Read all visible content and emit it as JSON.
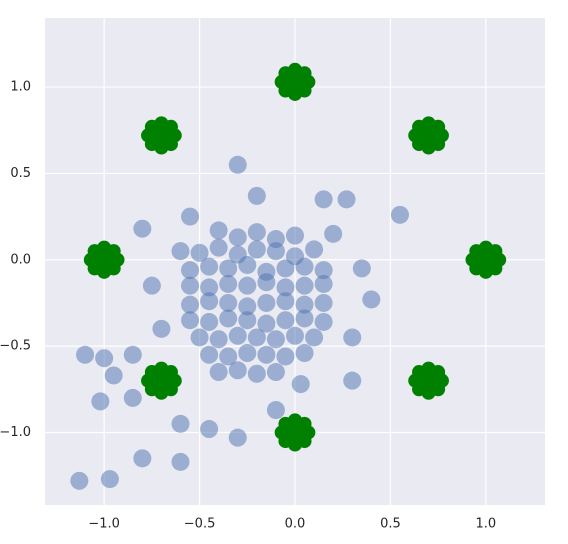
{
  "chart_data": {
    "type": "scatter",
    "xlim": [
      -1.31,
      1.31
    ],
    "ylim": [
      -1.42,
      1.4
    ],
    "xticks": [
      {
        "value": -1,
        "label": "−1.0"
      },
      {
        "value": -0.5,
        "label": "−0.5"
      },
      {
        "value": 0,
        "label": "0.0"
      },
      {
        "value": 0.5,
        "label": "0.5"
      },
      {
        "value": 1,
        "label": "1.0"
      }
    ],
    "yticks": [
      {
        "value": -1,
        "label": "−1.0"
      },
      {
        "value": -0.5,
        "label": "−0.5"
      },
      {
        "value": 0,
        "label": "0.0"
      },
      {
        "value": 0.5,
        "label": "0.5"
      },
      {
        "value": 1,
        "label": "1.0"
      }
    ],
    "grid": true,
    "background": "#eaeaf2",
    "series": [
      {
        "color": "#4c72b0",
        "opacity": 0.5,
        "x": [
          -0.4,
          -0.3,
          -0.2,
          -0.1,
          0.0,
          -0.5,
          -0.4,
          -0.3,
          -0.2,
          -0.1,
          0.0,
          0.1,
          -0.55,
          -0.45,
          -0.35,
          -0.25,
          -0.15,
          -0.05,
          0.05,
          0.15,
          -0.55,
          -0.45,
          -0.35,
          -0.25,
          -0.15,
          -0.05,
          0.05,
          0.15,
          -0.55,
          -0.45,
          -0.35,
          -0.25,
          -0.15,
          -0.05,
          0.05,
          0.15,
          -0.55,
          -0.45,
          -0.35,
          -0.25,
          -0.15,
          -0.05,
          0.05,
          0.15,
          -0.5,
          -0.4,
          -0.3,
          -0.2,
          -0.1,
          0.0,
          0.1,
          -0.45,
          -0.35,
          -0.25,
          -0.15,
          -0.05,
          0.05,
          -0.4,
          -0.3,
          -0.2,
          -0.1,
          -1.1,
          -1.0,
          -0.95,
          -1.02,
          -0.85,
          -1.13,
          -0.97,
          -0.8,
          -0.6,
          -0.3,
          -0.2,
          0.15,
          0.27,
          0.55,
          0.4,
          0.35,
          0.3,
          0.3,
          0.03,
          -0.1,
          -0.45,
          -0.3,
          -0.6,
          -0.75,
          -0.8,
          -0.6,
          -0.55,
          -0.7,
          -0.85,
          0.2
        ],
        "y": [
          0.17,
          0.13,
          0.16,
          0.12,
          0.14,
          0.04,
          0.07,
          0.03,
          0.06,
          0.05,
          0.02,
          0.06,
          -0.06,
          -0.04,
          -0.05,
          -0.03,
          -0.07,
          -0.05,
          -0.04,
          -0.06,
          -0.15,
          -0.16,
          -0.14,
          -0.15,
          -0.13,
          -0.16,
          -0.15,
          -0.14,
          -0.26,
          -0.24,
          -0.25,
          -0.27,
          -0.25,
          -0.24,
          -0.26,
          -0.25,
          -0.35,
          -0.36,
          -0.34,
          -0.35,
          -0.37,
          -0.35,
          -0.34,
          -0.36,
          -0.45,
          -0.46,
          -0.44,
          -0.45,
          -0.46,
          -0.44,
          -0.45,
          -0.55,
          -0.56,
          -0.54,
          -0.55,
          -0.56,
          -0.54,
          -0.65,
          -0.64,
          -0.66,
          -0.65,
          -0.55,
          -0.57,
          -0.67,
          -0.82,
          -0.8,
          -1.28,
          -1.27,
          -1.15,
          -1.17,
          0.55,
          0.37,
          0.35,
          0.35,
          0.26,
          -0.23,
          -0.05,
          -0.45,
          -0.7,
          -0.72,
          -0.87,
          -0.98,
          -1.03,
          -0.95,
          -0.15,
          0.18,
          0.05,
          0.25,
          -0.4,
          -0.55,
          0.15
        ]
      },
      {
        "color": "#008000",
        "opacity": 1,
        "x": [
          0,
          -0.07,
          0.07,
          0,
          0,
          -0.05,
          0.05,
          -0.05,
          0.05,
          0.7,
          0.63,
          0.77,
          0.7,
          0.7,
          0.65,
          0.75,
          0.65,
          0.75,
          1.0,
          0.93,
          1.07,
          1.0,
          1.0,
          0.95,
          1.05,
          0.95,
          1.05,
          0.7,
          0.63,
          0.77,
          0.7,
          0.7,
          0.65,
          0.75,
          0.65,
          0.75,
          0,
          -0.07,
          0.07,
          0,
          0,
          -0.05,
          0.05,
          -0.05,
          0.05,
          -0.7,
          -0.77,
          -0.63,
          -0.7,
          -0.7,
          -0.75,
          -0.65,
          -0.75,
          -0.65,
          -1.0,
          -1.07,
          -0.93,
          -1.0,
          -1.0,
          -1.05,
          -0.95,
          -1.05,
          -0.95,
          -0.7,
          -0.77,
          -0.63,
          -0.7,
          -0.7,
          -0.75,
          -0.65,
          -0.75,
          -0.65
        ],
        "y": [
          1.03,
          1.03,
          1.03,
          1.1,
          0.96,
          0.98,
          1.08,
          1.08,
          0.98,
          0.72,
          0.72,
          0.72,
          0.79,
          0.65,
          0.67,
          0.77,
          0.77,
          0.67,
          0,
          0,
          0,
          0.07,
          -0.07,
          -0.05,
          0.05,
          0.05,
          -0.05,
          -0.7,
          -0.7,
          -0.7,
          -0.63,
          -0.77,
          -0.75,
          -0.65,
          -0.65,
          -0.75,
          -1.0,
          -1.0,
          -1.0,
          -0.93,
          -1.07,
          -1.05,
          -0.95,
          -0.95,
          -1.05,
          -0.7,
          -0.7,
          -0.7,
          -0.63,
          -0.77,
          -0.75,
          -0.65,
          -0.65,
          -0.75,
          0,
          0,
          0,
          0.07,
          -0.07,
          -0.05,
          0.05,
          0.05,
          -0.05,
          0.72,
          0.72,
          0.72,
          0.79,
          0.65,
          0.67,
          0.77,
          0.77,
          0.67
        ]
      }
    ]
  }
}
